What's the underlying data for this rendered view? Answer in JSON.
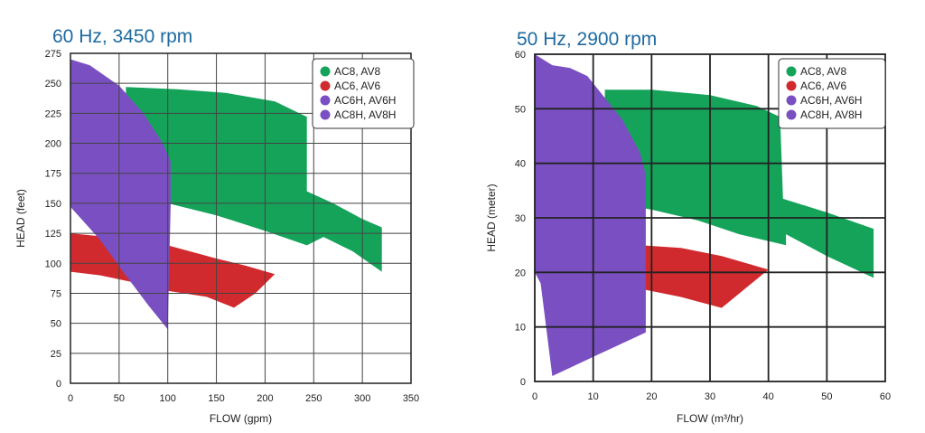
{
  "colors": {
    "ac8": "#15a35a",
    "ac6": "#d12a2e",
    "ac6h": "#7a4fc2",
    "ac8h": "#7a4fc2",
    "title": "#1e6aa0",
    "grid": "#222222"
  },
  "chart_data": [
    {
      "type": "area",
      "title": "60 Hz, 3450 rpm",
      "xlabel": "FLOW (gpm)",
      "ylabel": "HEAD (feet)",
      "xlim": [
        0,
        350
      ],
      "ylim": [
        0,
        275
      ],
      "xticks": [
        0,
        50,
        100,
        150,
        200,
        250,
        300,
        350
      ],
      "yticks": [
        0,
        25,
        50,
        75,
        100,
        125,
        150,
        175,
        200,
        225,
        250,
        275
      ],
      "grid": true,
      "legend_position": "top-right",
      "legend": [
        "AC8, AV8",
        "AC6, AV6",
        "AC6H, AV6H",
        "AC8H, AV8H"
      ],
      "series": [
        {
          "name": "AC8, AV8",
          "color_key": "ac8",
          "outline": [
            [
              57,
              247
            ],
            [
              110,
              245
            ],
            [
              160,
              242
            ],
            [
              210,
              235
            ],
            [
              243,
              222
            ],
            [
              243,
              160
            ],
            [
              270,
              150
            ],
            [
              300,
              137
            ],
            [
              320,
              130
            ],
            [
              320,
              93
            ],
            [
              290,
              110
            ],
            [
              260,
              122
            ],
            [
              243,
              115
            ],
            [
              200,
              127
            ],
            [
              150,
              140
            ],
            [
              100,
              150
            ],
            [
              57,
              155
            ]
          ]
        },
        {
          "name": "AC6, AV6",
          "color_key": "ac6",
          "outline": [
            [
              0,
              125
            ],
            [
              50,
              121
            ],
            [
              100,
              115
            ],
            [
              150,
              104
            ],
            [
              180,
              98
            ],
            [
              210,
              91
            ],
            [
              190,
              75
            ],
            [
              168,
              63
            ],
            [
              140,
              72
            ],
            [
              100,
              77
            ],
            [
              60,
              85
            ],
            [
              30,
              90
            ],
            [
              0,
              93
            ]
          ]
        },
        {
          "name": "AC6H, AV6H",
          "color_key": "ac6h",
          "outline": [
            [
              0,
              270
            ],
            [
              20,
              265
            ],
            [
              50,
              248
            ],
            [
              75,
              225
            ],
            [
              95,
              200
            ],
            [
              103,
              185
            ],
            [
              103,
              148
            ],
            [
              100,
              45
            ],
            [
              80,
              65
            ],
            [
              55,
              92
            ],
            [
              30,
              120
            ],
            [
              0,
              147
            ]
          ]
        }
      ]
    },
    {
      "type": "area",
      "title": "50 Hz, 2900 rpm",
      "xlabel": "FLOW (m³/hr)",
      "ylabel": "HEAD (meter)",
      "xlim": [
        0,
        60
      ],
      "ylim": [
        0,
        60
      ],
      "xticks": [
        0,
        10,
        20,
        30,
        40,
        50,
        60
      ],
      "yticks": [
        0,
        10,
        20,
        30,
        40,
        50,
        60
      ],
      "grid": true,
      "legend_position": "top-right",
      "legend": [
        "AC8, AV8",
        "AC6, AV6",
        "AC6H, AV6H",
        "AC8H, AV8H"
      ],
      "series": [
        {
          "name": "AC8, AV8",
          "color_key": "ac8",
          "outline": [
            [
              12,
              53.5
            ],
            [
              20,
              53.5
            ],
            [
              30,
              52.5
            ],
            [
              38,
              50.5
            ],
            [
              42,
              48.5
            ],
            [
              42.5,
              33.5
            ],
            [
              50,
              31
            ],
            [
              58,
              28
            ],
            [
              58,
              19
            ],
            [
              50,
              23
            ],
            [
              43,
              27
            ],
            [
              43,
              25
            ],
            [
              35,
              27
            ],
            [
              28,
              29.5
            ],
            [
              20,
              31.5
            ],
            [
              12,
              33
            ]
          ]
        },
        {
          "name": "AC6, AV6",
          "color_key": "ac6",
          "outline": [
            [
              18,
              25
            ],
            [
              25,
              24.5
            ],
            [
              32,
              23
            ],
            [
              40,
              20.5
            ],
            [
              36,
              17
            ],
            [
              32,
              13.5
            ],
            [
              25,
              15.5
            ],
            [
              18,
              17
            ]
          ]
        },
        {
          "name": "AC6H, AV6H",
          "color_key": "ac6h",
          "outline": [
            [
              0,
              60
            ],
            [
              3,
              58
            ],
            [
              6,
              57.5
            ],
            [
              9,
              56
            ],
            [
              12,
              52
            ],
            [
              15,
              48
            ],
            [
              18,
              42
            ],
            [
              19,
              38
            ],
            [
              19,
              20
            ],
            [
              19,
              9
            ],
            [
              15,
              7
            ],
            [
              11,
              5
            ],
            [
              7,
              3
            ],
            [
              3,
              1
            ],
            [
              1,
              18
            ],
            [
              0,
              20
            ]
          ]
        }
      ]
    }
  ]
}
